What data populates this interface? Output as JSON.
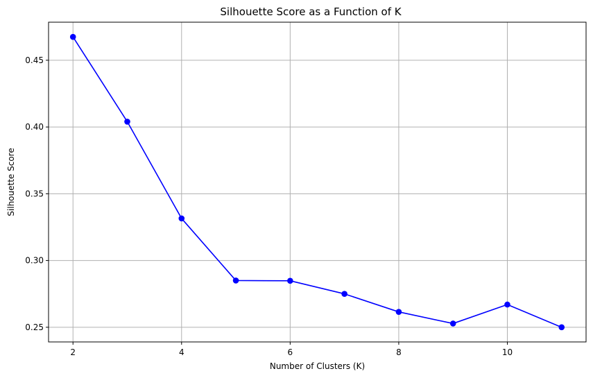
{
  "chart_data": {
    "type": "line",
    "title": "Silhouette Score as a Function of K",
    "xlabel": "Number of Clusters (K)",
    "ylabel": "Silhouette Score",
    "x": [
      2,
      3,
      4,
      5,
      6,
      7,
      8,
      9,
      10,
      11
    ],
    "series": [
      {
        "values": [
          0.4675,
          0.404,
          0.3315,
          0.285,
          0.2848,
          0.275,
          0.2615,
          0.2528,
          0.267,
          0.25
        ],
        "color": "#0000ff",
        "marker": "circle"
      }
    ],
    "xlim": [
      1.55,
      11.45
    ],
    "ylim": [
      0.239,
      0.4785
    ],
    "xticks": [
      2,
      4,
      6,
      8,
      10
    ],
    "xtick_labels": [
      "2",
      "4",
      "6",
      "8",
      "10"
    ],
    "yticks": [
      0.25,
      0.3,
      0.35,
      0.4,
      0.45
    ],
    "ytick_labels": [
      "0.25",
      "0.30",
      "0.35",
      "0.40",
      "0.45"
    ],
    "grid": true,
    "grid_color": "#b0b0b0"
  }
}
